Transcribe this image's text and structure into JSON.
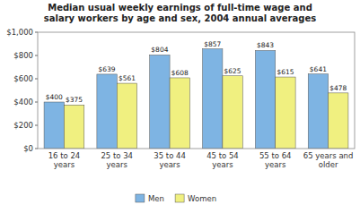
{
  "chart_data": {
    "type": "bar",
    "title": "Median usual weekly earnings of full-time wage and\nsalary workers by age and sex, 2004 annual averages",
    "categories": [
      "16 to 24\nyears",
      "25 to 34\nyears",
      "35 to 44\nyears",
      "45 to 54\nyears",
      "55 to 64\nyears",
      "65 years and\nolder"
    ],
    "series": [
      {
        "name": "Men",
        "color": "#7EB4E3",
        "values": [
          400,
          639,
          804,
          857,
          843,
          641
        ],
        "value_labels": [
          "$400",
          "$639",
          "$804",
          "$857",
          "$843",
          "$641"
        ]
      },
      {
        "name": "Women",
        "color": "#F0F080",
        "values": [
          375,
          561,
          608,
          625,
          615,
          478
        ],
        "value_labels": [
          "$375",
          "$561",
          "$608",
          "$625",
          "$615",
          "$478"
        ]
      }
    ],
    "ylim": [
      0,
      1000
    ],
    "yticks": [
      {
        "value": 0,
        "label": "$0"
      },
      {
        "value": 200,
        "label": "$200"
      },
      {
        "value": 400,
        "label": "$400"
      },
      {
        "value": 600,
        "label": "$600"
      },
      {
        "value": 800,
        "label": "$800"
      },
      {
        "value": 1000,
        "label": "$1,000"
      }
    ],
    "data_labels": true,
    "grid": false,
    "legend": "bottom"
  }
}
